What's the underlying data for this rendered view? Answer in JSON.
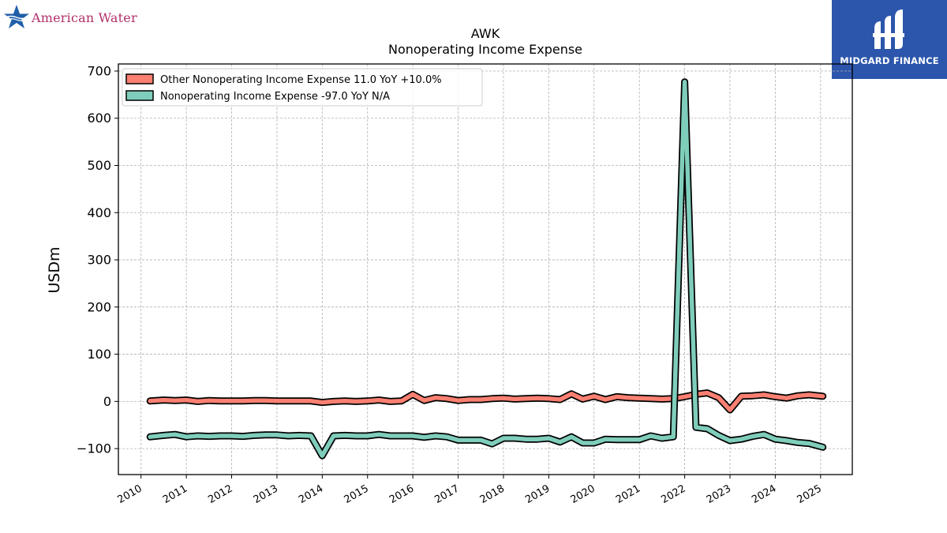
{
  "logos": {
    "left_text": "American Water",
    "right_text": "MIDGARD FINANCE"
  },
  "chart_data": {
    "type": "line",
    "title": "AWK",
    "subtitle": "Nonoperating Income Expense",
    "ylabel": "USDm",
    "xlabel": "",
    "ylim": [
      -155,
      715
    ],
    "xlim": [
      2009.5,
      2025.7
    ],
    "yticks": [
      -100,
      0,
      100,
      200,
      300,
      400,
      500,
      600,
      700
    ],
    "ytick_labels": [
      "−100",
      "0",
      "100",
      "200",
      "300",
      "400",
      "500",
      "600",
      "700"
    ],
    "xticks": [
      2010,
      2011,
      2012,
      2013,
      2014,
      2015,
      2016,
      2017,
      2018,
      2019,
      2020,
      2021,
      2022,
      2023,
      2024,
      2025
    ],
    "xtick_labels": [
      "2010",
      "2011",
      "2012",
      "2013",
      "2014",
      "2015",
      "2016",
      "2017",
      "2018",
      "2019",
      "2020",
      "2021",
      "2022",
      "2023",
      "2024",
      "2025"
    ],
    "grid": true,
    "legend_position": "top-left",
    "series": [
      {
        "name": "Other Nonoperating Income Expense  11.0 YoY +10.0%",
        "color": "#fa8072",
        "points": [
          [
            2010.2,
            1
          ],
          [
            2010.5,
            3
          ],
          [
            2010.75,
            2
          ],
          [
            2011.0,
            3
          ],
          [
            2011.25,
            0
          ],
          [
            2011.5,
            2
          ],
          [
            2011.75,
            1
          ],
          [
            2012.0,
            1
          ],
          [
            2012.25,
            1
          ],
          [
            2012.5,
            2
          ],
          [
            2012.75,
            2
          ],
          [
            2013.0,
            1
          ],
          [
            2013.25,
            1
          ],
          [
            2013.5,
            1
          ],
          [
            2013.75,
            1
          ],
          [
            2014.0,
            -2
          ],
          [
            2014.25,
            0
          ],
          [
            2014.5,
            1
          ],
          [
            2014.75,
            0
          ],
          [
            2015.0,
            1
          ],
          [
            2015.25,
            3
          ],
          [
            2015.5,
            0
          ],
          [
            2015.75,
            1
          ],
          [
            2016.0,
            15
          ],
          [
            2016.25,
            2
          ],
          [
            2016.5,
            8
          ],
          [
            2016.75,
            6
          ],
          [
            2017.0,
            2
          ],
          [
            2017.25,
            4
          ],
          [
            2017.5,
            4
          ],
          [
            2017.75,
            6
          ],
          [
            2018.0,
            7
          ],
          [
            2018.25,
            5
          ],
          [
            2018.5,
            6
          ],
          [
            2018.75,
            7
          ],
          [
            2019.0,
            6
          ],
          [
            2019.25,
            4
          ],
          [
            2019.5,
            16
          ],
          [
            2019.75,
            5
          ],
          [
            2020.0,
            11
          ],
          [
            2020.25,
            4
          ],
          [
            2020.5,
            10
          ],
          [
            2020.75,
            8
          ],
          [
            2021.0,
            7
          ],
          [
            2021.25,
            6
          ],
          [
            2021.5,
            5
          ],
          [
            2021.75,
            6
          ],
          [
            2022.0,
            10
          ],
          [
            2022.25,
            15
          ],
          [
            2022.5,
            18
          ],
          [
            2022.75,
            8
          ],
          [
            2023.0,
            -18
          ],
          [
            2023.25,
            11
          ],
          [
            2023.5,
            12
          ],
          [
            2023.75,
            14
          ],
          [
            2024.0,
            10
          ],
          [
            2024.25,
            7
          ],
          [
            2024.5,
            12
          ],
          [
            2024.75,
            14
          ],
          [
            2025.05,
            11
          ]
        ]
      },
      {
        "name": "Nonoperating Income Expense  -97.0 YoY N/A",
        "color": "#7fcdbb",
        "points": [
          [
            2010.2,
            -75
          ],
          [
            2010.5,
            -72
          ],
          [
            2010.75,
            -70
          ],
          [
            2011.0,
            -75
          ],
          [
            2011.25,
            -73
          ],
          [
            2011.5,
            -74
          ],
          [
            2011.75,
            -73
          ],
          [
            2012.0,
            -73
          ],
          [
            2012.25,
            -74
          ],
          [
            2012.5,
            -72
          ],
          [
            2012.75,
            -71
          ],
          [
            2013.0,
            -71
          ],
          [
            2013.25,
            -73
          ],
          [
            2013.5,
            -72
          ],
          [
            2013.75,
            -73
          ],
          [
            2014.0,
            -115
          ],
          [
            2014.25,
            -73
          ],
          [
            2014.5,
            -72
          ],
          [
            2014.75,
            -73
          ],
          [
            2015.0,
            -73
          ],
          [
            2015.25,
            -70
          ],
          [
            2015.5,
            -73
          ],
          [
            2015.75,
            -73
          ],
          [
            2016.0,
            -73
          ],
          [
            2016.25,
            -76
          ],
          [
            2016.5,
            -73
          ],
          [
            2016.75,
            -75
          ],
          [
            2017.0,
            -82
          ],
          [
            2017.25,
            -82
          ],
          [
            2017.5,
            -82
          ],
          [
            2017.75,
            -90
          ],
          [
            2018.0,
            -78
          ],
          [
            2018.25,
            -78
          ],
          [
            2018.5,
            -80
          ],
          [
            2018.75,
            -80
          ],
          [
            2019.0,
            -78
          ],
          [
            2019.25,
            -86
          ],
          [
            2019.5,
            -75
          ],
          [
            2019.75,
            -88
          ],
          [
            2020.0,
            -88
          ],
          [
            2020.25,
            -80
          ],
          [
            2020.5,
            -81
          ],
          [
            2020.75,
            -81
          ],
          [
            2021.0,
            -81
          ],
          [
            2021.25,
            -73
          ],
          [
            2021.5,
            -78
          ],
          [
            2021.75,
            -75
          ],
          [
            2022.0,
            677
          ],
          [
            2022.25,
            -55
          ],
          [
            2022.5,
            -58
          ],
          [
            2022.75,
            -72
          ],
          [
            2023.0,
            -83
          ],
          [
            2023.25,
            -80
          ],
          [
            2023.5,
            -74
          ],
          [
            2023.75,
            -70
          ],
          [
            2024.0,
            -80
          ],
          [
            2024.25,
            -83
          ],
          [
            2024.5,
            -87
          ],
          [
            2024.75,
            -89
          ],
          [
            2025.05,
            -97
          ]
        ]
      }
    ]
  }
}
